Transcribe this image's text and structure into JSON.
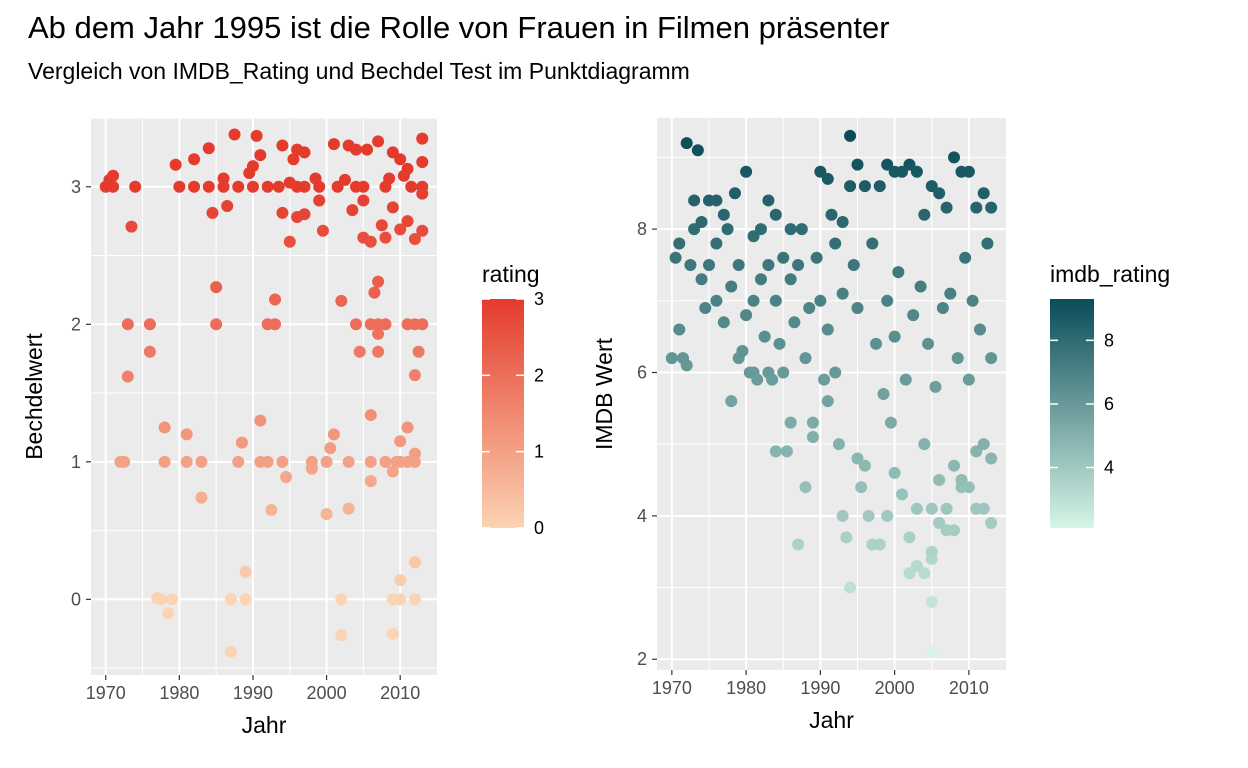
{
  "title": "Ab dem Jahr 1995 ist die Rolle von Frauen in Filmen präsenter",
  "subtitle": "Vergleich von IMDB_Rating und Bechdel Test im Punktdiagramm",
  "chart_data": [
    {
      "type": "scatter",
      "xlabel": "Jahr",
      "ylabel": "Bechdelwert",
      "xlim": [
        1968,
        2015
      ],
      "ylim": [
        -0.55,
        3.5
      ],
      "xticks": [
        1970,
        1980,
        1990,
        2000,
        2010
      ],
      "yticks": [
        0,
        1,
        2,
        3
      ],
      "grid": true,
      "legend": {
        "title": "rating",
        "placement": "right",
        "ticks": [
          0,
          1,
          2,
          3
        ],
        "range": [
          0,
          3
        ],
        "low_color": "#fbd4b3",
        "high_color": "#e43b2d"
      },
      "points": [
        [
          1970,
          3.0
        ],
        [
          1970.5,
          3.05
        ],
        [
          1971,
          3.08
        ],
        [
          1971,
          3.0
        ],
        [
          1972,
          1.0
        ],
        [
          1972.5,
          1.0
        ],
        [
          1973,
          2.0
        ],
        [
          1973,
          1.62
        ],
        [
          1973.5,
          2.71
        ],
        [
          1974,
          3.0
        ],
        [
          1976,
          2.0
        ],
        [
          1976,
          1.8
        ],
        [
          1977,
          0.01
        ],
        [
          1977.5,
          0.0
        ],
        [
          1978,
          1.25
        ],
        [
          1978,
          1.0
        ],
        [
          1978.5,
          -0.1
        ],
        [
          1979,
          0.0
        ],
        [
          1979.5,
          3.16
        ],
        [
          1980,
          3.0
        ],
        [
          1981,
          1.2
        ],
        [
          1981,
          1.0
        ],
        [
          1982,
          3.2
        ],
        [
          1982,
          3.0
        ],
        [
          1983,
          0.74
        ],
        [
          1983,
          1.0
        ],
        [
          1984,
          3.28
        ],
        [
          1984,
          3.0
        ],
        [
          1984.5,
          2.81
        ],
        [
          1985,
          2.27
        ],
        [
          1985,
          2.0
        ],
        [
          1986,
          3.06
        ],
        [
          1986,
          3.0
        ],
        [
          1986.5,
          2.86
        ],
        [
          1987,
          -0.38
        ],
        [
          1987,
          0.0
        ],
        [
          1987.5,
          3.38
        ],
        [
          1988,
          3.0
        ],
        [
          1988,
          1.0
        ],
        [
          1988.5,
          1.14
        ],
        [
          1989,
          0.2
        ],
        [
          1989,
          0.0
        ],
        [
          1989.5,
          3.1
        ],
        [
          1990,
          3.0
        ],
        [
          1990,
          3.15
        ],
        [
          1990.5,
          3.37
        ],
        [
          1991,
          3.23
        ],
        [
          1991,
          1.3
        ],
        [
          1991,
          1.0
        ],
        [
          1992,
          3.0
        ],
        [
          1992,
          2.0
        ],
        [
          1992,
          1.0
        ],
        [
          1992.5,
          0.65
        ],
        [
          1993,
          2.0
        ],
        [
          1993,
          2.18
        ],
        [
          1993.5,
          3.0
        ],
        [
          1994,
          3.3
        ],
        [
          1994,
          2.81
        ],
        [
          1994,
          1.0
        ],
        [
          1994.5,
          0.89
        ],
        [
          1995,
          3.03
        ],
        [
          1995,
          2.6
        ],
        [
          1995.5,
          3.2
        ],
        [
          1996,
          3.27
        ],
        [
          1996,
          2.78
        ],
        [
          1996,
          3.0
        ],
        [
          1997,
          3.25
        ],
        [
          1997,
          2.8
        ],
        [
          1997,
          3.0
        ],
        [
          1998,
          1.0
        ],
        [
          1998,
          0.95
        ],
        [
          1998.5,
          3.06
        ],
        [
          1999,
          3.0
        ],
        [
          1999,
          2.9
        ],
        [
          1999.5,
          2.68
        ],
        [
          2000,
          0.62
        ],
        [
          2000,
          1.0
        ],
        [
          2000.5,
          1.1
        ],
        [
          2001,
          1.2
        ],
        [
          2001,
          3.31
        ],
        [
          2001.5,
          3.0
        ],
        [
          2002,
          2.17
        ],
        [
          2002,
          0.0
        ],
        [
          2002,
          -0.26
        ],
        [
          2002.5,
          3.05
        ],
        [
          2003,
          3.3
        ],
        [
          2003,
          0.66
        ],
        [
          2003,
          1.0
        ],
        [
          2003.5,
          2.83
        ],
        [
          2004,
          3.0
        ],
        [
          2004,
          3.27
        ],
        [
          2004,
          2.0
        ],
        [
          2004.5,
          1.8
        ],
        [
          2005,
          2.63
        ],
        [
          2005,
          2.9
        ],
        [
          2005,
          3.0
        ],
        [
          2005.5,
          3.27
        ],
        [
          2006,
          2.6
        ],
        [
          2006,
          2.0
        ],
        [
          2006,
          1.0
        ],
        [
          2006,
          0.86
        ],
        [
          2006,
          1.34
        ],
        [
          2006.5,
          2.23
        ],
        [
          2007,
          2.31
        ],
        [
          2007,
          1.93
        ],
        [
          2007,
          2.0
        ],
        [
          2007,
          1.8
        ],
        [
          2007,
          3.33
        ],
        [
          2007.5,
          2.72
        ],
        [
          2008,
          2.63
        ],
        [
          2008,
          3.0
        ],
        [
          2008,
          1.0
        ],
        [
          2008,
          2.0
        ],
        [
          2008.5,
          3.06
        ],
        [
          2009,
          2.85
        ],
        [
          2009,
          3.25
        ],
        [
          2009,
          0.0
        ],
        [
          2009,
          -0.25
        ],
        [
          2009,
          0.93
        ],
        [
          2009.5,
          1.0
        ],
        [
          2010,
          3.2
        ],
        [
          2010,
          2.69
        ],
        [
          2010,
          1.15
        ],
        [
          2010,
          0.14
        ],
        [
          2010,
          0.0
        ],
        [
          2010,
          1.0
        ],
        [
          2010.5,
          3.08
        ],
        [
          2011,
          1.25
        ],
        [
          2011,
          2.75
        ],
        [
          2011,
          3.13
        ],
        [
          2011,
          1.0
        ],
        [
          2011,
          2.0
        ],
        [
          2011.5,
          3.0
        ],
        [
          2012,
          2.62
        ],
        [
          2012,
          2.0
        ],
        [
          2012,
          1.0
        ],
        [
          2012,
          1.63
        ],
        [
          2012,
          0.27
        ],
        [
          2012,
          0.0
        ],
        [
          2012,
          1.06
        ],
        [
          2012.5,
          1.8
        ],
        [
          2013,
          3.35
        ],
        [
          2013,
          3.18
        ],
        [
          2013,
          2.68
        ],
        [
          2013,
          2.0
        ],
        [
          2013,
          3.0
        ],
        [
          2013,
          2.95
        ]
      ]
    },
    {
      "type": "scatter",
      "xlabel": "Jahr",
      "ylabel": "IMDB Wert",
      "xlim": [
        1968,
        2015
      ],
      "ylim": [
        1.85,
        9.55
      ],
      "xticks": [
        1970,
        1980,
        1990,
        2000,
        2010
      ],
      "yticks": [
        2,
        4,
        6,
        8
      ],
      "grid": true,
      "legend": {
        "title": "imdb_rating",
        "placement": "right",
        "ticks": [
          4,
          6,
          8
        ],
        "range": [
          2.1,
          9.3
        ],
        "low_color": "#d6f5e6",
        "high_color": "#0a4c58"
      },
      "points": [
        [
          1970,
          6.2
        ],
        [
          1970.5,
          7.6
        ],
        [
          1971,
          7.8
        ],
        [
          1971,
          6.6
        ],
        [
          1971.5,
          6.2
        ],
        [
          1972,
          9.2
        ],
        [
          1972,
          6.1
        ],
        [
          1972.5,
          7.5
        ],
        [
          1973,
          8.4
        ],
        [
          1973,
          8.0
        ],
        [
          1973.5,
          9.1
        ],
        [
          1974,
          7.3
        ],
        [
          1974,
          8.1
        ],
        [
          1974.5,
          6.9
        ],
        [
          1975,
          7.5
        ],
        [
          1975,
          8.4
        ],
        [
          1976,
          8.4
        ],
        [
          1976,
          7.0
        ],
        [
          1976,
          7.8
        ],
        [
          1977,
          8.2
        ],
        [
          1977,
          6.7
        ],
        [
          1977.5,
          8.0
        ],
        [
          1978,
          7.2
        ],
        [
          1978,
          5.6
        ],
        [
          1978.5,
          8.5
        ],
        [
          1979,
          6.2
        ],
        [
          1979,
          7.5
        ],
        [
          1979.5,
          6.3
        ],
        [
          1980,
          8.8
        ],
        [
          1980,
          6.8
        ],
        [
          1980.5,
          6.0
        ],
        [
          1981,
          7.9
        ],
        [
          1981,
          7.0
        ],
        [
          1981,
          6.0
        ],
        [
          1981.5,
          5.9
        ],
        [
          1982,
          8.0
        ],
        [
          1982,
          7.3
        ],
        [
          1982.5,
          6.5
        ],
        [
          1983,
          8.4
        ],
        [
          1983,
          7.5
        ],
        [
          1983,
          6.0
        ],
        [
          1983.5,
          5.9
        ],
        [
          1984,
          4.9
        ],
        [
          1984,
          8.2
        ],
        [
          1984,
          7.0
        ],
        [
          1984.5,
          6.4
        ],
        [
          1985,
          7.6
        ],
        [
          1985,
          6.0
        ],
        [
          1985.5,
          4.9
        ],
        [
          1986,
          5.3
        ],
        [
          1986,
          8.0
        ],
        [
          1986,
          7.3
        ],
        [
          1986.5,
          6.7
        ],
        [
          1987,
          3.6
        ],
        [
          1987,
          7.5
        ],
        [
          1987.5,
          8.0
        ],
        [
          1988,
          6.2
        ],
        [
          1988,
          4.4
        ],
        [
          1988.5,
          6.9
        ],
        [
          1989,
          5.1
        ],
        [
          1989,
          5.3
        ],
        [
          1989.5,
          7.6
        ],
        [
          1990,
          8.8
        ],
        [
          1990,
          7.0
        ],
        [
          1990.5,
          5.9
        ],
        [
          1991,
          8.7
        ],
        [
          1991,
          6.6
        ],
        [
          1991,
          5.6
        ],
        [
          1991.5,
          8.2
        ],
        [
          1992,
          7.8
        ],
        [
          1992,
          6.0
        ],
        [
          1992.5,
          5.0
        ],
        [
          1993,
          4.0
        ],
        [
          1993,
          8.1
        ],
        [
          1993,
          7.1
        ],
        [
          1993.5,
          3.7
        ],
        [
          1994,
          9.3
        ],
        [
          1994,
          8.6
        ],
        [
          1994,
          3.0
        ],
        [
          1994.5,
          7.5
        ],
        [
          1995,
          8.9
        ],
        [
          1995,
          6.9
        ],
        [
          1995,
          4.8
        ],
        [
          1995.5,
          4.4
        ],
        [
          1996,
          8.6
        ],
        [
          1996,
          4.7
        ],
        [
          1996.5,
          4.0
        ],
        [
          1997,
          7.8
        ],
        [
          1997,
          3.6
        ],
        [
          1997.5,
          6.4
        ],
        [
          1998,
          8.6
        ],
        [
          1998,
          3.6
        ],
        [
          1998.5,
          5.7
        ],
        [
          1999,
          8.9
        ],
        [
          1999,
          7.0
        ],
        [
          1999,
          4.0
        ],
        [
          1999.5,
          5.3
        ],
        [
          2000,
          8.8
        ],
        [
          2000,
          6.5
        ],
        [
          2000,
          4.6
        ],
        [
          2000.5,
          7.4
        ],
        [
          2001,
          8.8
        ],
        [
          2001,
          4.3
        ],
        [
          2001.5,
          5.9
        ],
        [
          2002,
          8.9
        ],
        [
          2002,
          3.7
        ],
        [
          2002,
          3.2
        ],
        [
          2002.5,
          6.8
        ],
        [
          2003,
          8.8
        ],
        [
          2003,
          4.1
        ],
        [
          2003,
          3.3
        ],
        [
          2003.5,
          7.2
        ],
        [
          2004,
          8.2
        ],
        [
          2004,
          3.2
        ],
        [
          2004,
          5.0
        ],
        [
          2004.5,
          6.4
        ],
        [
          2005,
          2.1
        ],
        [
          2005,
          2.8
        ],
        [
          2005,
          3.4
        ],
        [
          2005,
          3.5
        ],
        [
          2005,
          4.1
        ],
        [
          2005,
          8.6
        ],
        [
          2005.5,
          5.8
        ],
        [
          2006,
          8.5
        ],
        [
          2006,
          3.9
        ],
        [
          2006,
          4.5
        ],
        [
          2006.5,
          6.9
        ],
        [
          2007,
          8.3
        ],
        [
          2007,
          4.1
        ],
        [
          2007,
          3.8
        ],
        [
          2007.5,
          7.1
        ],
        [
          2008,
          9.0
        ],
        [
          2008,
          4.7
        ],
        [
          2008,
          3.8
        ],
        [
          2008.5,
          6.2
        ],
        [
          2009,
          8.8
        ],
        [
          2009,
          4.4
        ],
        [
          2009,
          4.5
        ],
        [
          2009.5,
          7.6
        ],
        [
          2010,
          8.8
        ],
        [
          2010,
          4.4
        ],
        [
          2010,
          5.9
        ],
        [
          2010.5,
          7.0
        ],
        [
          2011,
          8.3
        ],
        [
          2011,
          4.9
        ],
        [
          2011,
          4.1
        ],
        [
          2011.5,
          6.6
        ],
        [
          2012,
          8.5
        ],
        [
          2012,
          4.1
        ],
        [
          2012,
          5.0
        ],
        [
          2012.5,
          7.8
        ],
        [
          2013,
          8.3
        ],
        [
          2013,
          3.9
        ],
        [
          2013,
          4.8
        ],
        [
          2013,
          6.2
        ]
      ]
    }
  ]
}
